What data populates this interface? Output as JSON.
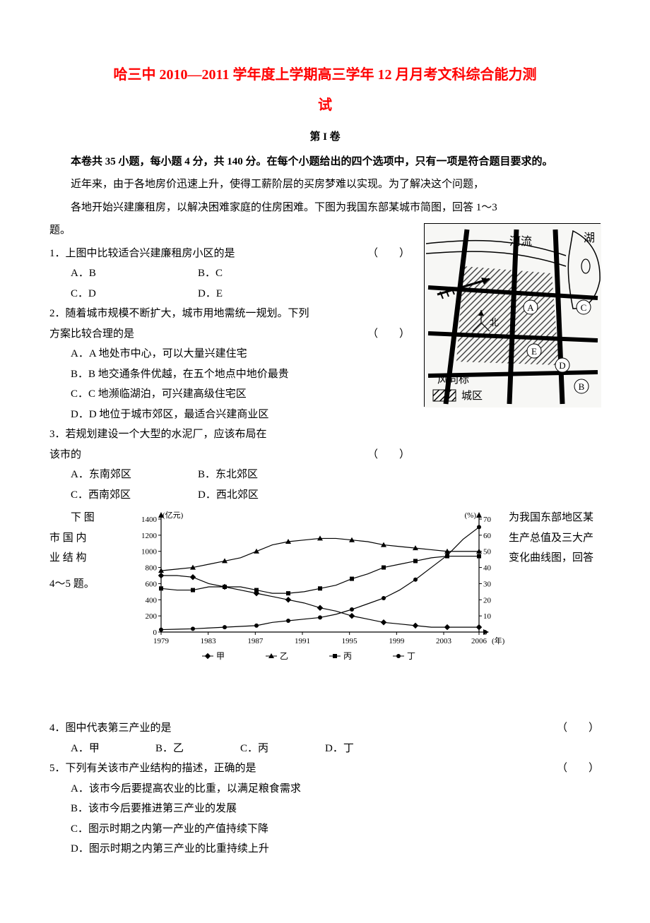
{
  "title": {
    "line1": "哈三中 2010—2011 学年度上学期高三学年 12 月月考文科综合能力测",
    "line2": "试"
  },
  "section_head": "第 I 卷",
  "instruction": "本卷共 35 小题，每小题 4 分，共 140 分。在每个小题给出的四个选项中，只有一项是符合题目要求的。",
  "intro_p1": "近年来，由于各地房价迅速上升，使得工薪阶层的买房梦难以实现。为了解决这个问题，",
  "intro_p2": "各地开始兴建廉租房，以解决困难家庭的住房困难。下图为我国东部某城市简图，回答 1～3",
  "intro_p3": "题。",
  "q1": {
    "stem": "1．上图中比较适合兴建廉租房小区的是",
    "paren": "（　　）",
    "a": "A．B",
    "b": "B．C",
    "c": "C．D",
    "d": "D．E"
  },
  "q2": {
    "stem1": "2．随着城市规模不断扩大，城市用地需统一规划。下列",
    "stem2": "方案比较合理的是",
    "paren": "（　　）",
    "a": "A．A 地处市中心，可以大量兴建住宅",
    "b": "B．B 地交通条件优越，在五个地点中地价最贵",
    "c": "C．C 地濒临湖泊，可兴建高级住宅区",
    "d": "D．D 地位于城市郊区，最适合兴建商业区"
  },
  "q3": {
    "stem1": "3．若规划建设一个大型的水泥厂，应该布局在",
    "stem2": "该市的",
    "paren": "（　　）",
    "a": "A．东南郊区",
    "b": "B．东北郊区",
    "c": "C．西南郊区",
    "d": "D．西北郊区"
  },
  "chart_intro": {
    "left1": "　　下 图",
    "left2": "市 国 内",
    "left3": "业 结 构",
    "left4": "4～5 题。",
    "right1": "为我国东部地区某",
    "right2": "生产总值及三大产",
    "right3": "变化曲线图，回答"
  },
  "chart": {
    "type": "line",
    "ylabel_left": "(亿元)",
    "ylabel_right": "(%)",
    "left_ticks": [
      0,
      200,
      400,
      600,
      800,
      1000,
      1200,
      1400
    ],
    "right_ticks": [
      0,
      10,
      20,
      30,
      40,
      50,
      60,
      70
    ],
    "x_ticks": [
      1979,
      1983,
      1987,
      1991,
      1995,
      1999,
      2003,
      2006
    ],
    "x_label_suffix": "(年)",
    "legend": [
      "甲",
      "乙",
      "丙",
      "丁"
    ],
    "legend_markers": [
      "diamond",
      "triangle",
      "square",
      "circle"
    ],
    "series": {
      "jia": [
        35,
        35,
        34,
        30,
        28,
        26,
        24,
        22,
        20,
        18,
        15,
        13,
        10,
        8,
        6,
        5,
        4,
        3,
        3,
        3,
        3
      ],
      "yi": [
        38,
        39,
        40,
        42,
        44,
        46,
        50,
        54,
        56,
        57,
        58,
        58,
        57,
        56,
        54,
        53,
        52,
        51,
        50,
        50,
        50
      ],
      "bing": [
        27,
        26,
        26,
        28,
        28,
        28,
        26,
        24,
        24,
        25,
        27,
        29,
        33,
        36,
        40,
        42,
        44,
        46,
        47,
        47,
        47
      ],
      "ding": [
        30,
        35,
        40,
        50,
        60,
        70,
        80,
        120,
        140,
        160,
        180,
        220,
        280,
        350,
        420,
        520,
        650,
        800,
        950,
        1150,
        1300
      ]
    },
    "colors": {
      "axis": "#000000",
      "line": "#000000",
      "bg": "#ffffff"
    }
  },
  "q4": {
    "stem": "4．图中代表第三产业的是",
    "paren": "（　　）",
    "a": "A．甲",
    "b": "B．乙",
    "c": "C．丙",
    "d": "D．丁"
  },
  "q5": {
    "stem": "5．下列有关该市产业结构的描述，正确的是",
    "paren": "（　　）",
    "a": "A．该市今后要提高农业的比重，以满足粮食需求",
    "b": "B．该市今后要推进第三产业的发展",
    "c": "C．图示时期之内第一产业的产值持续下降",
    "d": "D．图示时期之内第三产业的比重持续上升"
  },
  "map": {
    "labels": {
      "river": "河流",
      "lake": "湖",
      "wind": "风向标",
      "legend": "城区",
      "north": "北",
      "A": "A",
      "B": "B",
      "C": "C",
      "D": "D",
      "E": "E"
    },
    "colors": {
      "stroke": "#000000",
      "bg": "#f7f7f5",
      "city_hatch": "#000000"
    }
  }
}
